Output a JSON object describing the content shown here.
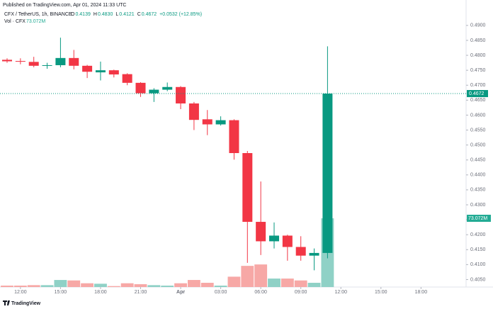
{
  "header": {
    "published": "Published on TradingView.com, Apr 01, 2024 11:33 UTC",
    "symbol": "CFX / TetherUS, 1h, BINANCE",
    "ohlc": [
      {
        "key": "O",
        "value": "0.4139"
      },
      {
        "key": "H",
        "value": "0.4830"
      },
      {
        "key": "L",
        "value": "0.4121"
      },
      {
        "key": "C",
        "value": "0.4672"
      }
    ],
    "change": "+0.0532 (+12.85%)",
    "volume_title": "Vol · CFX",
    "volume_label": "73.072M"
  },
  "footer": {
    "brand": "TradingView"
  },
  "chart_data": {
    "type": "candlestick",
    "up_color": "#089981",
    "down_color": "#f23645",
    "volume_up_color": "#8fd1c6",
    "volume_down_color": "#f7a8a6",
    "categories": [
      null,
      null,
      null,
      null,
      null,
      null,
      null,
      null,
      null,
      null,
      null,
      null,
      null,
      null,
      null,
      null,
      null,
      null,
      null,
      null,
      null,
      null,
      null,
      null,
      null
    ],
    "open": [
      0.4785,
      0.4781,
      0.4778,
      0.4765,
      0.4767,
      0.4791,
      0.4765,
      0.4743,
      0.475,
      0.4737,
      0.4708,
      0.4673,
      0.4685,
      0.4694,
      0.4639,
      0.4586,
      0.4569,
      0.4583,
      0.4473,
      0.4243,
      0.4178,
      0.4197,
      0.4159,
      0.413,
      0.4139
    ],
    "high": [
      0.479,
      0.479,
      0.4795,
      0.4775,
      0.4859,
      0.4818,
      0.4768,
      0.4779,
      0.4752,
      0.474,
      0.471,
      0.469,
      0.4709,
      0.4697,
      0.4644,
      0.4617,
      0.4596,
      0.4586,
      0.448,
      0.4378,
      0.4241,
      0.42,
      0.4195,
      0.4154,
      0.483
    ],
    "low": [
      0.4775,
      0.477,
      0.476,
      0.4755,
      0.476,
      0.4753,
      0.4724,
      0.4716,
      0.4726,
      0.47,
      0.4661,
      0.4644,
      0.468,
      0.462,
      0.455,
      0.4533,
      0.4565,
      0.4451,
      0.4106,
      0.4132,
      0.4154,
      0.4113,
      0.4113,
      0.4081,
      0.4121
    ],
    "close": [
      0.478,
      0.4779,
      0.4765,
      0.4767,
      0.4791,
      0.4765,
      0.4745,
      0.475,
      0.4736,
      0.4708,
      0.4673,
      0.4685,
      0.4694,
      0.4639,
      0.4584,
      0.4569,
      0.4583,
      0.4473,
      0.4243,
      0.4178,
      0.4197,
      0.4159,
      0.413,
      0.4139,
      0.4672
    ],
    "volume": [
      1.5,
      1.5,
      2,
      2,
      7.5,
      7,
      4,
      3.5,
      1,
      4,
      3,
      2,
      1.5,
      4,
      7.5,
      4.5,
      1.5,
      11,
      22.5,
      24,
      9,
      9,
      7,
      4.5,
      73.072
    ],
    "ylim": [
      0.4025,
      0.4985
    ],
    "yticks": [
      {
        "value": 0.49,
        "label": "0.4900"
      },
      {
        "value": 0.485,
        "label": "0.4850"
      },
      {
        "value": 0.48,
        "label": "0.4800"
      },
      {
        "value": 0.475,
        "label": "0.4750"
      },
      {
        "value": 0.47,
        "label": "0.4700"
      },
      {
        "value": 0.465,
        "label": "0.4650"
      },
      {
        "value": 0.46,
        "label": "0.4600"
      },
      {
        "value": 0.455,
        "label": "0.4550"
      },
      {
        "value": 0.45,
        "label": "0.4500"
      },
      {
        "value": 0.445,
        "label": "0.4450"
      },
      {
        "value": 0.44,
        "label": "0.4400"
      },
      {
        "value": 0.435,
        "label": "0.4350"
      },
      {
        "value": 0.43,
        "label": "0.4300"
      },
      {
        "value": 0.425,
        "label": "0.4250"
      },
      {
        "value": 0.42,
        "label": "0.4200"
      },
      {
        "value": 0.415,
        "label": "0.4150"
      },
      {
        "value": 0.41,
        "label": "0.4100"
      },
      {
        "value": 0.405,
        "label": "0.4050"
      }
    ],
    "xticks": [
      {
        "value": 1,
        "label": "12:00"
      },
      {
        "value": 4,
        "label": "15:00"
      },
      {
        "value": 7,
        "label": "18:00"
      },
      {
        "value": 10,
        "label": "21:00"
      },
      {
        "value": 13,
        "label": "Apr"
      },
      {
        "value": 16,
        "label": "03:00"
      },
      {
        "value": 19,
        "label": "06:00"
      },
      {
        "value": 22,
        "label": "09:00"
      },
      {
        "value": 25,
        "label": "12:00"
      },
      {
        "value": 28,
        "label": "15:00"
      },
      {
        "value": 31,
        "label": "18:00"
      }
    ],
    "grid": false
  }
}
